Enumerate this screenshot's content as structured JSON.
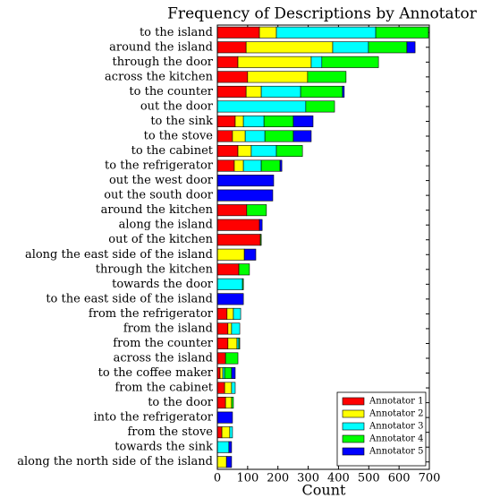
{
  "chart_data": {
    "type": "stacked_barh",
    "title": "Frequency of Descriptions by Annotator",
    "xlabel": "Count",
    "categories": [
      "to the island",
      "around the island",
      "through the door",
      "across the kitchen",
      "to the counter",
      "out the door",
      "to the sink",
      "to the stove",
      "to the cabinet",
      "to the refrigerator",
      "out the west door",
      "out the south door",
      "around the kitchen",
      "along the island",
      "out of the kitchen",
      "along the east side of the island",
      "through the kitchen",
      "towards the door",
      "to the east side of the island",
      "from the refrigerator",
      "from the island",
      "from the counter",
      "across the island",
      "to the coffee maker",
      "from the cabinet",
      "to the door",
      "into the refrigerator",
      "from the stove",
      "towards the sink",
      "along the north side of the island"
    ],
    "series": [
      {
        "name": "Annotator 1",
        "color": "#ff0000",
        "values": [
          139,
          95,
          68,
          100,
          95,
          0,
          59,
          50,
          68,
          56,
          0,
          0,
          97,
          139,
          142,
          0,
          71,
          0,
          0,
          32,
          35,
          35,
          27,
          9,
          24,
          27,
          0,
          15,
          0,
          0
        ]
      },
      {
        "name": "Annotator 2",
        "color": "#ffff00",
        "values": [
          56,
          286,
          242,
          198,
          50,
          0,
          27,
          42,
          44,
          30,
          0,
          0,
          0,
          0,
          0,
          89,
          0,
          0,
          0,
          21,
          12,
          30,
          0,
          9,
          23,
          20,
          0,
          26,
          0,
          30
        ]
      },
      {
        "name": "Annotator 3",
        "color": "#00ffff",
        "values": [
          328,
          118,
          35,
          0,
          130,
          292,
          68,
          65,
          83,
          59,
          0,
          0,
          0,
          0,
          0,
          0,
          0,
          83,
          0,
          24,
          27,
          6,
          0,
          6,
          12,
          0,
          0,
          9,
          38,
          0
        ]
      },
      {
        "name": "Annotator 4",
        "color": "#00ff00",
        "values": [
          174,
          127,
          187,
          127,
          138,
          95,
          97,
          94,
          86,
          62,
          0,
          0,
          65,
          0,
          3,
          0,
          35,
          3,
          0,
          0,
          0,
          3,
          41,
          23,
          0,
          6,
          0,
          0,
          0,
          0
        ]
      },
      {
        "name": "Annotator 5",
        "color": "#0000ff",
        "values": [
          0,
          27,
          0,
          0,
          6,
          0,
          65,
          59,
          0,
          6,
          186,
          183,
          0,
          9,
          0,
          38,
          0,
          0,
          86,
          0,
          0,
          0,
          0,
          12,
          0,
          0,
          50,
          0,
          9,
          17
        ]
      }
    ],
    "xlim": [
      0,
      700
    ],
    "xticks": [
      0,
      100,
      200,
      300,
      400,
      500,
      600,
      700
    ],
    "legend": "lower right"
  }
}
